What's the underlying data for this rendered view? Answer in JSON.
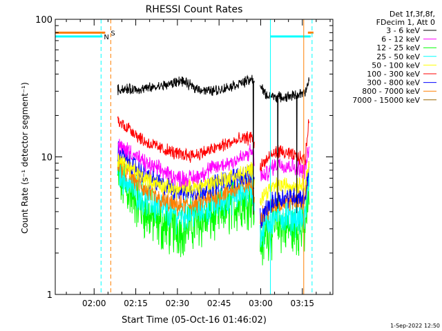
{
  "chart_data": {
    "type": "line",
    "title": "RHESSI Count Rates",
    "ylabel": "Count Rate (s⁻¹ detector segment⁻¹)",
    "xlabel": "Start Time (05-Oct-16 01:46:02)",
    "y_scale": "log",
    "ylim": [
      1,
      100
    ],
    "xlim_minutes": [
      0,
      100
    ],
    "x_ticks": [
      {
        "t": 14,
        "label": "02:00"
      },
      {
        "t": 29,
        "label": "02:15"
      },
      {
        "t": 44,
        "label": "02:30"
      },
      {
        "t": 59,
        "label": "02:45"
      },
      {
        "t": 74,
        "label": "03:00"
      },
      {
        "t": 89,
        "label": "03:15"
      }
    ],
    "y_ticks": [
      {
        "v": 1,
        "label": "1"
      },
      {
        "v": 10,
        "label": "10"
      },
      {
        "v": 100,
        "label": "100"
      }
    ],
    "legend_header": [
      "Det 1f,3f,8f,",
      "FDecim 1, Att 0"
    ],
    "legend_position": "top-right",
    "series": [
      {
        "name": "3 - 6 keV",
        "color": "#000000",
        "base": [
          [
            22.5,
            31
          ],
          [
            30,
            31
          ],
          [
            36,
            32
          ],
          [
            42,
            34
          ],
          [
            45,
            36
          ],
          [
            50,
            32
          ],
          [
            55,
            30
          ],
          [
            60,
            31
          ],
          [
            64,
            33
          ],
          [
            70,
            36
          ],
          [
            72,
            37
          ],
          [
            76,
            28
          ],
          [
            82,
            27
          ],
          [
            86,
            28
          ],
          [
            90,
            29
          ],
          [
            91.5,
            36
          ]
        ],
        "noise": 0.03
      },
      {
        "name": "6 - 12 keV",
        "color": "#ff00ff",
        "base": [
          [
            22.5,
            12
          ],
          [
            27,
            11
          ],
          [
            32,
            9
          ],
          [
            38,
            8
          ],
          [
            44,
            7
          ],
          [
            50,
            7
          ],
          [
            55,
            8
          ],
          [
            62,
            9
          ],
          [
            68,
            10
          ],
          [
            71,
            11
          ],
          [
            72,
            9
          ],
          [
            75,
            7
          ],
          [
            77,
            8
          ],
          [
            80,
            9
          ],
          [
            86,
            8.5
          ],
          [
            90,
            8
          ],
          [
            91.5,
            12
          ]
        ],
        "noise": 0.05
      },
      {
        "name": "12 - 25 keV",
        "color": "#00ff00",
        "base": [
          [
            22.5,
            7
          ],
          [
            27,
            5.5
          ],
          [
            32,
            4
          ],
          [
            38,
            3.2
          ],
          [
            44,
            3
          ],
          [
            50,
            3.3
          ],
          [
            55,
            3.6
          ],
          [
            62,
            4.2
          ],
          [
            68,
            4.8
          ],
          [
            71,
            5
          ],
          [
            72,
            3.5
          ],
          [
            74,
            2.3
          ],
          [
            76,
            2.8
          ],
          [
            80,
            3.2
          ],
          [
            86,
            3
          ],
          [
            90,
            3
          ],
          [
            91.5,
            6
          ]
        ],
        "noise": 0.16
      },
      {
        "name": "25 - 50 keV",
        "color": "#00ffff",
        "base": [
          [
            22.5,
            8
          ],
          [
            27,
            6.3
          ],
          [
            32,
            5
          ],
          [
            38,
            4.2
          ],
          [
            44,
            3.8
          ],
          [
            50,
            4
          ],
          [
            55,
            4.3
          ],
          [
            62,
            5
          ],
          [
            68,
            5.6
          ],
          [
            71,
            6
          ],
          [
            72,
            4
          ],
          [
            74,
            2.7
          ],
          [
            76,
            3.3
          ],
          [
            80,
            3.8
          ],
          [
            86,
            3.6
          ],
          [
            90,
            3.5
          ],
          [
            91.5,
            7
          ]
        ],
        "noise": 0.1
      },
      {
        "name": "50 - 100 keV",
        "color": "#ffff00",
        "base": [
          [
            22.5,
            9.5
          ],
          [
            27,
            8.2
          ],
          [
            32,
            7
          ],
          [
            38,
            6.2
          ],
          [
            44,
            5.8
          ],
          [
            50,
            6
          ],
          [
            55,
            6.4
          ],
          [
            62,
            7
          ],
          [
            68,
            7.6
          ],
          [
            71,
            8
          ],
          [
            72,
            6
          ],
          [
            74,
            5
          ],
          [
            76,
            5.6
          ],
          [
            80,
            6.2
          ],
          [
            86,
            6.2
          ],
          [
            90,
            6.5
          ],
          [
            91.5,
            9
          ]
        ],
        "noise": 0.05
      },
      {
        "name": "100 - 300 keV",
        "color": "#ff0000",
        "base": [
          [
            22.5,
            18
          ],
          [
            27,
            16
          ],
          [
            32,
            13
          ],
          [
            38,
            11.5
          ],
          [
            44,
            10.5
          ],
          [
            50,
            10.3
          ],
          [
            55,
            11
          ],
          [
            62,
            12.5
          ],
          [
            68,
            13.5
          ],
          [
            71,
            14
          ],
          [
            72,
            11
          ],
          [
            74,
            8.5
          ],
          [
            76,
            9.5
          ],
          [
            80,
            11
          ],
          [
            86,
            10.2
          ],
          [
            90,
            9.5
          ],
          [
            91.5,
            20
          ]
        ],
        "noise": 0.04
      },
      {
        "name": "300 - 800 keV",
        "color": "#0000ff",
        "base": [
          [
            22.5,
            11
          ],
          [
            27,
            9
          ],
          [
            32,
            7.5
          ],
          [
            38,
            6.3
          ],
          [
            44,
            5.7
          ],
          [
            50,
            5.6
          ],
          [
            55,
            6
          ],
          [
            62,
            6.8
          ],
          [
            68,
            7.4
          ],
          [
            71,
            7.8
          ],
          [
            72,
            5.5
          ],
          [
            74,
            3.3
          ],
          [
            76,
            4.2
          ],
          [
            80,
            5
          ],
          [
            86,
            5.2
          ],
          [
            90,
            5
          ],
          [
            91.5,
            9
          ]
        ],
        "noise": 0.06
      },
      {
        "name": "800 - 7000 keV",
        "color": "#ff7f00",
        "base": [
          [
            22.5,
            9
          ],
          [
            27,
            7.4
          ],
          [
            32,
            5.8
          ],
          [
            38,
            4.8
          ],
          [
            44,
            4.4
          ],
          [
            50,
            4.5
          ],
          [
            55,
            4.9
          ],
          [
            62,
            5.6
          ],
          [
            68,
            6.2
          ],
          [
            71,
            6.5
          ],
          [
            72,
            4.8
          ],
          [
            74,
            3.6
          ],
          [
            76,
            4
          ],
          [
            80,
            4.6
          ],
          [
            86,
            4.8
          ],
          [
            90,
            4.8
          ],
          [
            91.5,
            9
          ]
        ],
        "noise": 0.06
      },
      {
        "name": "7000 - 15000 keV",
        "color": "#996600",
        "base": [],
        "noise": 0
      }
    ],
    "segments": [
      [
        22.5,
        71.8
      ],
      [
        73.8,
        91.5
      ]
    ],
    "dropouts": [
      [
        71.3,
        3.8
      ],
      [
        80.2,
        4.2
      ],
      [
        87.0,
        3.9
      ]
    ],
    "flags": {
      "attenuator_levels": {
        "upper": 80,
        "lower": 75
      },
      "S": {
        "color": "#ff7f00",
        "label": "S",
        "level": 80,
        "segments": [
          [
            0,
            18
          ],
          [
            91,
            93
          ]
        ],
        "vlines": [
          20,
          89.5
        ]
      },
      "N": {
        "color": "#00ffff",
        "label": "N",
        "level": 75,
        "segments": [
          [
            0,
            17
          ],
          [
            77.5,
            92
          ]
        ],
        "vlines": [
          16.5,
          92.5
        ]
      },
      "cyan_solid_vlines": [
        0,
        77.5
      ]
    }
  },
  "footer": {
    "date": "1-Sep-2022 12:50"
  }
}
